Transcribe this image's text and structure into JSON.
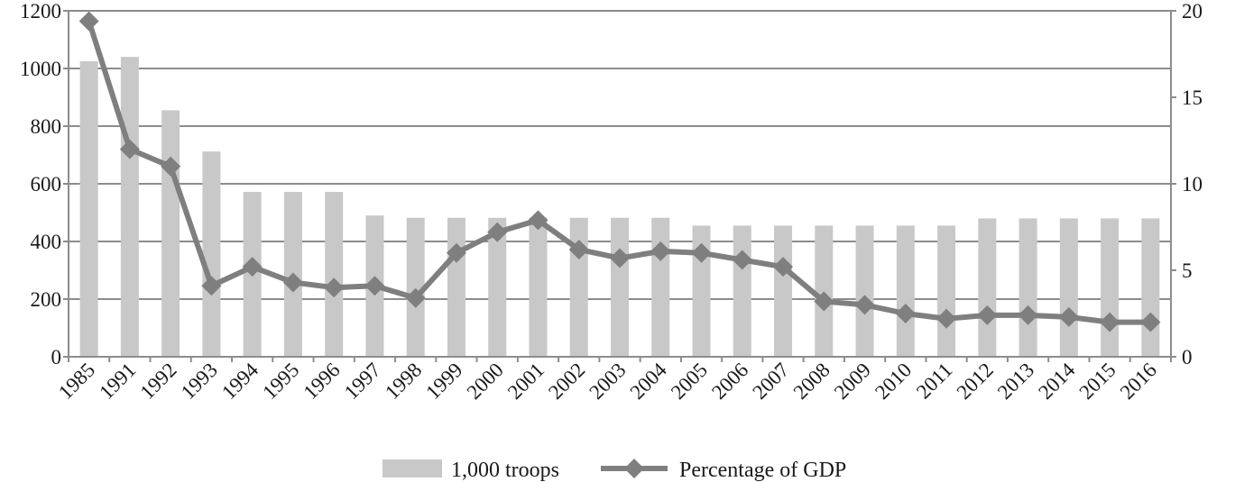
{
  "chart_data": {
    "type": "bar+line",
    "categories": [
      "1985",
      "1991",
      "1992",
      "1993",
      "1994",
      "1995",
      "1996",
      "1997",
      "1998",
      "1999",
      "2000",
      "2001",
      "2002",
      "2003",
      "2004",
      "2005",
      "2006",
      "2007",
      "2008",
      "2009",
      "2010",
      "2011",
      "2012",
      "2013",
      "2014",
      "2015",
      "2016"
    ],
    "series": [
      {
        "name": "1,000 troops",
        "type": "bar",
        "axis": "left",
        "color": "#c8c8c8",
        "values": [
          1025,
          1040,
          855,
          712,
          572,
          572,
          572,
          490,
          482,
          482,
          482,
          482,
          482,
          482,
          482,
          455,
          455,
          455,
          455,
          455,
          455,
          455,
          480,
          480,
          480,
          480,
          480
        ]
      },
      {
        "name": "Percentage of GDP",
        "type": "line",
        "axis": "right",
        "color": "#7f7f7f",
        "marker": "diamond",
        "values": [
          19.4,
          12.0,
          11.0,
          4.1,
          5.2,
          4.3,
          4.0,
          4.1,
          3.4,
          6.0,
          7.2,
          7.9,
          6.2,
          5.7,
          6.1,
          6.0,
          5.6,
          5.2,
          3.2,
          3.0,
          2.5,
          2.2,
          2.4,
          2.4,
          2.3,
          2.0,
          2.0
        ]
      }
    ],
    "y_left": {
      "ylim": [
        0,
        1200
      ],
      "ticks": [
        "0",
        "200",
        "400",
        "600",
        "800",
        "1000",
        "1200"
      ]
    },
    "y_right": {
      "ylim": [
        0,
        20
      ],
      "ticks": [
        "0",
        "5",
        "10",
        "15",
        "20"
      ]
    },
    "grid": true,
    "legend": "bottom-center"
  }
}
